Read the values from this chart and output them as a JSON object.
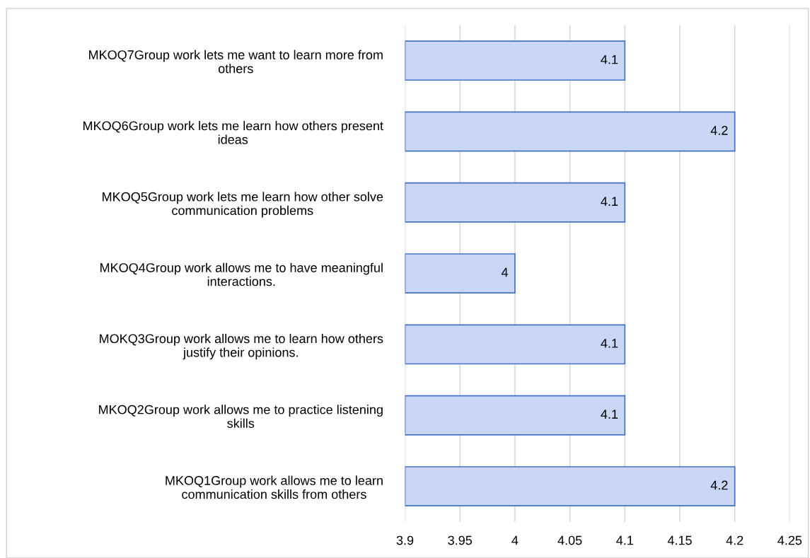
{
  "chart_data": {
    "type": "bar",
    "orientation": "horizontal",
    "categories": [
      "MKOQ7Group work lets me want to learn more from\nothers",
      "MKOQ6Group work lets me learn how others present\nideas",
      "MKOQ5Group work lets me learn how other solve\ncommunication problems",
      "MKOQ4Group work allows me to have meaningful\ninteractions.",
      "MOKQ3Group work allows me to learn how others\njustify their opinions.",
      "MKOQ2Group work allows me to practice listening\nskills",
      "MKOQ1Group work allows me to learn\ncommunication skills from others"
    ],
    "values": [
      4.1,
      4.2,
      4.1,
      4.0,
      4.1,
      4.1,
      4.2
    ],
    "value_labels": [
      "4.1",
      "4.2",
      "4.1",
      "4",
      "4.1",
      "4.1",
      "4.2"
    ],
    "color": "#c9d6f6",
    "xlim": [
      3.9,
      4.25
    ],
    "xticks": [
      3.9,
      3.95,
      4,
      4.05,
      4.1,
      4.15,
      4.2,
      4.25
    ],
    "grid": "x",
    "legend": false
  }
}
